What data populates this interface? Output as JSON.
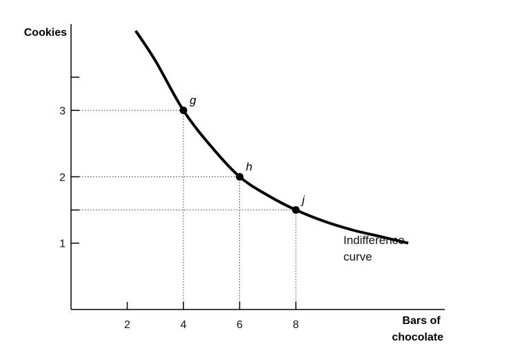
{
  "chart_data": {
    "type": "line",
    "ylabel": "Cookies",
    "xlabel_lines": [
      "Bars of",
      "chocolate"
    ],
    "xlim": [
      0,
      13.3
    ],
    "ylim": [
      0,
      4.3
    ],
    "x_ticks": [
      2,
      4,
      6,
      8
    ],
    "y_ticks": [
      1,
      1.5,
      2,
      3,
      3.5
    ],
    "x_tick_labels": [
      "2",
      "4",
      "6",
      "8"
    ],
    "y_tick_labels": [
      "1",
      "",
      "2",
      "3",
      ""
    ],
    "series": [
      {
        "name_lines": [
          "Indifference",
          "curve"
        ],
        "x": [
          2.3,
          3,
          4,
          5,
          6,
          7,
          8,
          9,
          10,
          11,
          12
        ],
        "y": [
          4.2,
          3.75,
          3.0,
          2.45,
          2.0,
          1.72,
          1.5,
          1.33,
          1.2,
          1.1,
          1.0
        ]
      }
    ],
    "points": [
      {
        "label": "g",
        "x": 4,
        "y": 3
      },
      {
        "label": "h",
        "x": 6,
        "y": 2
      },
      {
        "label": "j",
        "x": 8,
        "y": 1.5
      }
    ],
    "grid": false,
    "guides": "dotted lines from each point to both axes"
  }
}
